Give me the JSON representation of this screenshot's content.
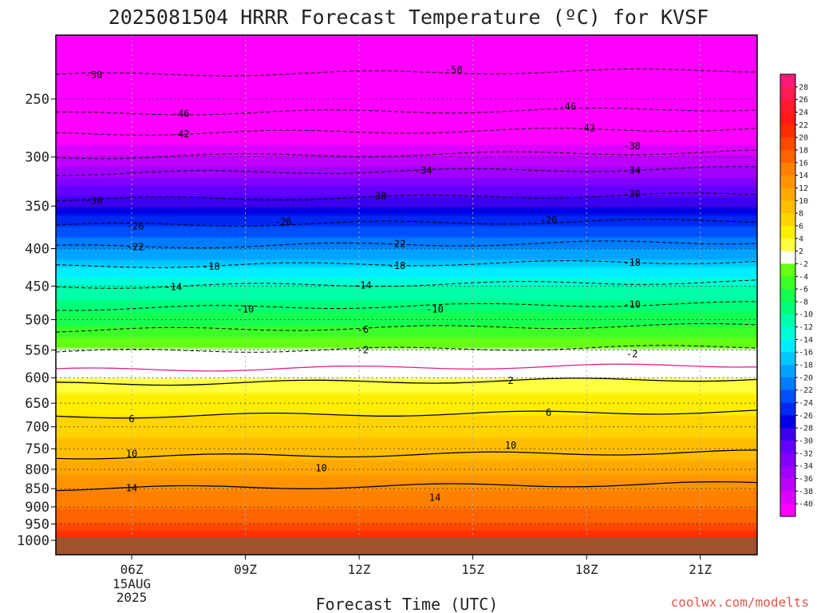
{
  "chart_data": {
    "type": "heatmap",
    "title": "2025081504 HRRR Forecast Temperature (ºC) for KVSF",
    "xlabel": "Forecast Time (UTC)",
    "ylabel": "",
    "credit": "coolwx.com/modelts",
    "y_axis": {
      "scale": "log-pressure",
      "units": "hPa",
      "range": [
        1000,
        200
      ],
      "tick_labels": [
        250,
        300,
        350,
        400,
        450,
        500,
        550,
        600,
        650,
        700,
        750,
        800,
        850,
        900,
        950,
        1000
      ]
    },
    "x_axis": {
      "range_hours_utc": [
        4,
        22.5
      ],
      "ticks": [
        {
          "label": "06Z",
          "sub": [
            "15AUG",
            "2025"
          ]
        },
        {
          "label": "09Z",
          "sub": []
        },
        {
          "label": "12Z",
          "sub": []
        },
        {
          "label": "15Z",
          "sub": []
        },
        {
          "label": "18Z",
          "sub": []
        },
        {
          "label": "21Z",
          "sub": []
        }
      ]
    },
    "ground_level_hpa": 990,
    "colorbar": {
      "labels": [
        28,
        26,
        24,
        22,
        20,
        18,
        16,
        14,
        12,
        10,
        8,
        6,
        4,
        2,
        -2,
        -4,
        -6,
        -8,
        -10,
        -12,
        -14,
        -16,
        -18,
        -20,
        -22,
        -24,
        -26,
        -28,
        -30,
        -32,
        -34,
        -36,
        -38,
        -40
      ],
      "colors": [
        "#ff1a7a",
        "#ff1a52",
        "#ff1a2e",
        "#ff1a1a",
        "#ff2e00",
        "#ff4800",
        "#ff6400",
        "#ff8000",
        "#ff9400",
        "#ffa800",
        "#ffbe00",
        "#ffd400",
        "#ffee00",
        "#ffff40",
        "#ffffff",
        "#64ff14",
        "#3cff28",
        "#14ff50",
        "#00ff78",
        "#00ffaa",
        "#00ffd6",
        "#00eeff",
        "#00c8ff",
        "#00a2ff",
        "#007cff",
        "#0050ff",
        "#0028f0",
        "#0000e6",
        "#3c00f0",
        "#6400ff",
        "#8200ff",
        "#a000ff",
        "#be00ff",
        "#dc00ff",
        "#ff00ff"
      ]
    },
    "temperature_profile": [
      {
        "p": 1000,
        "t": 22
      },
      {
        "p": 950,
        "t": 18
      },
      {
        "p": 900,
        "t": 16
      },
      {
        "p": 850,
        "t": 14
      },
      {
        "p": 800,
        "t": 11
      },
      {
        "p": 750,
        "t": 9
      },
      {
        "p": 700,
        "t": 7
      },
      {
        "p": 650,
        "t": 5
      },
      {
        "p": 600,
        "t": 2
      },
      {
        "p": 550,
        "t": -2
      },
      {
        "p": 500,
        "t": -7
      },
      {
        "p": 450,
        "t": -12
      },
      {
        "p": 400,
        "t": -20
      },
      {
        "p": 350,
        "t": -28
      },
      {
        "p": 300,
        "t": -38
      },
      {
        "p": 250,
        "t": -47
      },
      {
        "p": 200,
        "t": -55
      }
    ],
    "contour_labels": [
      {
        "t": "50",
        "time": 5.0,
        "p": 232
      },
      {
        "t": "50",
        "time": 14.5,
        "p": 228
      },
      {
        "t": "46",
        "time": 7.3,
        "p": 262
      },
      {
        "t": "46",
        "time": 17.5,
        "p": 256
      },
      {
        "t": "42",
        "time": 7.3,
        "p": 279
      },
      {
        "t": "42",
        "time": 18.0,
        "p": 274
      },
      {
        "t": "38",
        "time": 19.2,
        "p": 290
      },
      {
        "t": "34",
        "time": 13.7,
        "p": 313
      },
      {
        "t": "34",
        "time": 19.2,
        "p": 313
      },
      {
        "t": "30",
        "time": 5.0,
        "p": 344
      },
      {
        "t": "30",
        "time": 12.5,
        "p": 339
      },
      {
        "t": "30",
        "time": 19.2,
        "p": 337
      },
      {
        "t": "26",
        "time": 6.1,
        "p": 373
      },
      {
        "t": "26",
        "time": 10.0,
        "p": 368
      },
      {
        "t": "26",
        "time": 17.0,
        "p": 366
      },
      {
        "t": "22",
        "time": 6.1,
        "p": 398
      },
      {
        "t": "22",
        "time": 13.0,
        "p": 394
      },
      {
        "t": "18",
        "time": 8.1,
        "p": 423
      },
      {
        "t": "18",
        "time": 13.0,
        "p": 422
      },
      {
        "t": "18",
        "time": 19.2,
        "p": 418
      },
      {
        "t": "14",
        "time": 7.1,
        "p": 451
      },
      {
        "t": "14",
        "time": 12.1,
        "p": 449
      },
      {
        "t": "10",
        "time": 9.0,
        "p": 484
      },
      {
        "t": "10",
        "time": 14.0,
        "p": 484
      },
      {
        "t": "10",
        "time": 19.2,
        "p": 477
      },
      {
        "t": "6",
        "time": 12.1,
        "p": 516
      },
      {
        "t": "2",
        "time": 12.1,
        "p": 550
      },
      {
        "t": "2",
        "time": 19.2,
        "p": 557
      },
      {
        "t": "2",
        "time": 16.0,
        "p": 606
      },
      {
        "t": "6",
        "time": 6.0,
        "p": 683
      },
      {
        "t": "6",
        "time": 17.0,
        "p": 670
      },
      {
        "t": "10",
        "time": 6.0,
        "p": 762
      },
      {
        "t": "10",
        "time": 11.0,
        "p": 797
      },
      {
        "t": "10",
        "time": 16.0,
        "p": 742
      },
      {
        "t": "14",
        "time": 6.0,
        "p": 849
      },
      {
        "t": "14",
        "time": 14.0,
        "p": 875
      }
    ]
  }
}
